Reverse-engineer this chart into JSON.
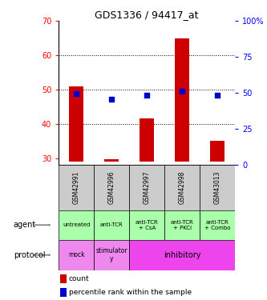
{
  "title": "GDS1336 / 94417_at",
  "samples": [
    "GSM42991",
    "GSM42996",
    "GSM42997",
    "GSM42998",
    "GSM43013"
  ],
  "bar_bottom": 29,
  "bar_top": [
    51,
    29.8,
    41.5,
    65,
    35
  ],
  "percentile_right_axis": [
    49.5,
    45.5,
    48.5,
    51.5,
    48.5
  ],
  "ylim_left": [
    28,
    70
  ],
  "ylim_right": [
    0,
    100
  ],
  "yticks_left": [
    30,
    40,
    50,
    60,
    70
  ],
  "yticks_right": [
    0,
    25,
    50,
    75,
    100
  ],
  "bar_color": "#cc0000",
  "dot_color": "#0000cc",
  "agent_labels": [
    "untreated",
    "anti-TCR",
    "anti-TCR\n+ CsA",
    "anti-TCR\n+ PKCi",
    "anti-TCR\n+ Combo"
  ],
  "agent_bg": "#aaffaa",
  "sample_bg": "#cccccc",
  "protocol_mock_color": "#ee88ee",
  "protocol_stim_color": "#ee88ee",
  "protocol_inhib_color": "#ee44ee",
  "legend_count_color": "#cc0000",
  "legend_pct_color": "#0000cc",
  "agent_label": "agent",
  "protocol_label": "protocol"
}
